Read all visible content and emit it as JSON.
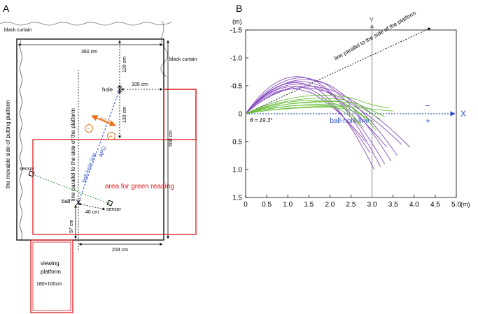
{
  "panel_a": {
    "letter": "A",
    "black_curtain_top": "black curtain",
    "black_curtain_right": "black curtain",
    "dim_360": "360 cm",
    "dim_120": "120 cm",
    "dim_105": "105 cm",
    "dim_130": "130 cm",
    "dim_500": "500 cm",
    "dim_204": "204 cm",
    "dim_40": "40 cm",
    "dim_97": "97 cm",
    "hole": "hole",
    "ball": "ball",
    "sensor_left": "sensor",
    "sensor_right": "sensor",
    "mld": "MLD",
    "apd": "APD",
    "ball_hole_line": "ball-hole line",
    "parallel_line": "line parallel to the side of the platform",
    "movable_side": "the movable side of putting platform",
    "green_reading": "area for green reading",
    "viewing_1": "viewing",
    "viewing_2": "platform",
    "viewing_size": "180×100cm",
    "minus_sign": "−",
    "plus_sign": "+",
    "colors": {
      "red": "#e0161b",
      "blue": "#2b50c8",
      "orange": "#e8731f",
      "green": "#2e9b3a",
      "black": "#000000"
    }
  },
  "panel_b": {
    "letter": "B",
    "ylabel_unit": "(m)",
    "xlabel_unit": "(m)",
    "y_axis_label": "Y",
    "x_axis_label": "X",
    "minus_label": "−",
    "plus_label": "+",
    "ball_hole_line": "ball-hole line",
    "parallel_line": "line parallel to the side of the platform",
    "theta": "θ = 19.3°"
  },
  "chart_data": {
    "type": "line",
    "title": "",
    "xlabel": "(m)",
    "ylabel": "(m)",
    "xlim": [
      0,
      5.0
    ],
    "ylim": [
      -1.5,
      1.5
    ],
    "y_inverted": true,
    "x_ticks": [
      "0",
      "0.5",
      "1.0",
      "1.5",
      "2.0",
      "2.5",
      "3.0",
      "3.5",
      "4.0",
      "4.5",
      "5.0"
    ],
    "y_ticks": [
      "-1.5",
      "-1.0",
      "-0.5",
      "0",
      "0.5",
      "1.0",
      "1.5"
    ],
    "theta_deg": 19.3,
    "series": [
      {
        "name": "purple-1",
        "color": "#8a4fbf",
        "peak": [
          1.6,
          -0.6
        ],
        "end": [
          3.3,
          0.9
        ]
      },
      {
        "name": "purple-2",
        "color": "#8a4fbf",
        "peak": [
          1.75,
          -0.58
        ],
        "end": [
          3.45,
          0.85
        ]
      },
      {
        "name": "purple-3",
        "color": "#8a4fbf",
        "peak": [
          1.85,
          -0.55
        ],
        "end": [
          3.6,
          0.75
        ]
      },
      {
        "name": "purple-4",
        "color": "#8a4fbf",
        "peak": [
          1.7,
          -0.52
        ],
        "end": [
          3.2,
          0.95
        ]
      },
      {
        "name": "purple-5",
        "color": "#8a4fbf",
        "peak": [
          1.55,
          -0.5
        ],
        "end": [
          3.05,
          1.0
        ]
      },
      {
        "name": "purple-6",
        "color": "#8a4fbf",
        "peak": [
          1.65,
          -0.48
        ],
        "end": [
          3.35,
          0.6
        ]
      },
      {
        "name": "purple-7",
        "color": "#8a4fbf",
        "peak": [
          1.9,
          -0.45
        ],
        "end": [
          3.9,
          0.6
        ]
      },
      {
        "name": "purple-8",
        "color": "#8a4fbf",
        "peak": [
          1.5,
          -0.44
        ],
        "end": [
          2.95,
          0.7
        ]
      },
      {
        "name": "purple-9",
        "color": "#8a4fbf",
        "peak": [
          1.8,
          -0.42
        ],
        "end": [
          3.7,
          0.55
        ]
      },
      {
        "name": "purple-10",
        "color": "#8a4fbf",
        "peak": [
          1.45,
          -0.4
        ],
        "end": [
          2.85,
          0.5
        ]
      },
      {
        "name": "green-1",
        "color": "#6abf3a",
        "peak": [
          2.4,
          -0.3
        ],
        "end": [
          3.4,
          -0.1
        ]
      },
      {
        "name": "green-2",
        "color": "#6abf3a",
        "peak": [
          2.3,
          -0.25
        ],
        "end": [
          3.2,
          0.1
        ]
      },
      {
        "name": "green-3",
        "color": "#6abf3a",
        "peak": [
          2.2,
          -0.22
        ],
        "end": [
          3.0,
          0.2
        ]
      },
      {
        "name": "green-4",
        "color": "#6abf3a",
        "peak": [
          2.5,
          -0.2
        ],
        "end": [
          3.3,
          0.05
        ]
      },
      {
        "name": "green-5",
        "color": "#6abf3a",
        "peak": [
          2.1,
          -0.18
        ],
        "end": [
          2.8,
          0.25
        ]
      },
      {
        "name": "green-6",
        "color": "#6abf3a",
        "peak": [
          2.35,
          -0.15
        ],
        "end": [
          3.1,
          0.3
        ]
      },
      {
        "name": "green-7",
        "color": "#6abf3a",
        "peak": [
          2.0,
          -0.14
        ],
        "end": [
          2.7,
          0.2
        ]
      },
      {
        "name": "green-8",
        "color": "#6abf3a",
        "peak": [
          2.6,
          -0.12
        ],
        "end": [
          3.5,
          -0.05
        ]
      },
      {
        "name": "green-9",
        "color": "#6abf3a",
        "peak": [
          2.25,
          -0.1
        ],
        "end": [
          3.05,
          0.15
        ]
      }
    ]
  }
}
